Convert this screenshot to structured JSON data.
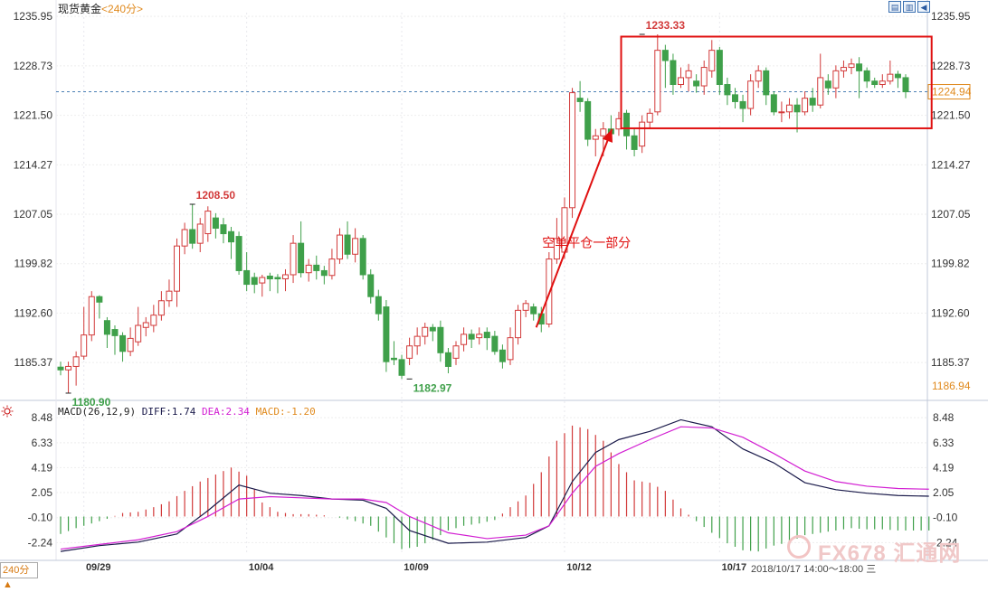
{
  "header": {
    "instrument": "现货黄金",
    "period": "<240分>"
  },
  "toolbar": {
    "btn1": "▤",
    "btn2": "▥",
    "btn3": "◀"
  },
  "macd_header": {
    "label": "MACD(26,12,9)",
    "diff": "DIFF:1.74",
    "dea": "DEA:2.34",
    "macd": "MACD:-1.20"
  },
  "bottom": {
    "period_button": "240分 ▲",
    "time_range": "2018/10/17 14:00～18:00 三"
  },
  "watermark": "FX678 汇通网",
  "colors": {
    "up": "#d23a3a",
    "down": "#3fa04a",
    "diff": "#1a1a4a",
    "dea": "#d21ed2",
    "macd_label": "#e08a1e",
    "box": "#e01010",
    "arrow": "#e01010"
  },
  "chart_data": [
    {
      "type": "candlestick",
      "price_axis_ticks": [
        1235.95,
        1228.73,
        1221.5,
        1214.27,
        1207.05,
        1199.82,
        1192.6,
        1185.37
      ],
      "ylim": [
        1180.5,
        1236.5
      ],
      "current_price": "1224.94",
      "last_low_label": "1186.94",
      "date_ticks": [
        {
          "i": 3,
          "label": "09/29"
        },
        {
          "i": 24,
          "label": "10/04"
        },
        {
          "i": 44,
          "label": "10/09"
        },
        {
          "i": 65,
          "label": "10/12"
        },
        {
          "i": 85,
          "label": "10/17"
        }
      ],
      "annotations": [
        {
          "i": 1,
          "value": 1180.9,
          "text": "1180.90",
          "pos": "below"
        },
        {
          "i": 17,
          "value": 1208.5,
          "text": "1208.50",
          "pos": "above"
        },
        {
          "i": 45,
          "value": 1182.97,
          "text": "1182.97",
          "pos": "below"
        },
        {
          "i": 75,
          "value": 1233.33,
          "text": "1233.33",
          "pos": "above"
        }
      ],
      "callout_text": "空单平仓一部分",
      "candles": [
        {
          "o": 1184.7,
          "c": 1184.3,
          "h": 1185.5,
          "l": 1183.5
        },
        {
          "o": 1184.3,
          "c": 1184.8,
          "h": 1185.5,
          "l": 1180.9
        },
        {
          "o": 1184.8,
          "c": 1186.2,
          "h": 1187.0,
          "l": 1182.0
        },
        {
          "o": 1186.3,
          "c": 1189.4,
          "h": 1193.5,
          "l": 1185.8
        },
        {
          "o": 1189.4,
          "c": 1195.0,
          "h": 1195.8,
          "l": 1188.5
        },
        {
          "o": 1195.0,
          "c": 1194.2,
          "h": 1195.2,
          "l": 1191.8
        },
        {
          "o": 1191.5,
          "c": 1189.5,
          "h": 1192.0,
          "l": 1187.5
        },
        {
          "o": 1190.2,
          "c": 1189.3,
          "h": 1190.8,
          "l": 1186.5
        },
        {
          "o": 1189.3,
          "c": 1187.0,
          "h": 1189.8,
          "l": 1185.5
        },
        {
          "o": 1187.0,
          "c": 1188.9,
          "h": 1190.5,
          "l": 1186.3
        },
        {
          "o": 1188.4,
          "c": 1190.8,
          "h": 1193.5,
          "l": 1187.8
        },
        {
          "o": 1190.5,
          "c": 1191.2,
          "h": 1192.0,
          "l": 1189.2
        },
        {
          "o": 1190.8,
          "c": 1192.3,
          "h": 1193.8,
          "l": 1189.8
        },
        {
          "o": 1192.3,
          "c": 1194.4,
          "h": 1195.8,
          "l": 1191.5
        },
        {
          "o": 1194.4,
          "c": 1195.8,
          "h": 1197.5,
          "l": 1193.5
        },
        {
          "o": 1195.8,
          "c": 1202.4,
          "h": 1203.5,
          "l": 1193.5
        },
        {
          "o": 1202.4,
          "c": 1204.8,
          "h": 1205.8,
          "l": 1201.2
        },
        {
          "o": 1204.8,
          "c": 1202.8,
          "h": 1208.5,
          "l": 1202.0
        },
        {
          "o": 1202.8,
          "c": 1205.6,
          "h": 1206.5,
          "l": 1201.5
        },
        {
          "o": 1204.2,
          "c": 1207.5,
          "h": 1208.2,
          "l": 1203.0
        },
        {
          "o": 1206.5,
          "c": 1205.0,
          "h": 1207.2,
          "l": 1203.5
        },
        {
          "o": 1205.5,
          "c": 1204.2,
          "h": 1206.5,
          "l": 1202.8
        },
        {
          "o": 1204.5,
          "c": 1203.0,
          "h": 1205.2,
          "l": 1200.5
        },
        {
          "o": 1203.8,
          "c": 1198.8,
          "h": 1204.5,
          "l": 1198.2
        },
        {
          "o": 1198.8,
          "c": 1196.8,
          "h": 1201.5,
          "l": 1195.8
        },
        {
          "o": 1197.8,
          "c": 1196.8,
          "h": 1198.5,
          "l": 1195.5
        },
        {
          "o": 1197.0,
          "c": 1197.8,
          "h": 1198.2,
          "l": 1195.0
        },
        {
          "o": 1198.0,
          "c": 1197.6,
          "h": 1198.5,
          "l": 1195.8
        },
        {
          "o": 1197.8,
          "c": 1197.6,
          "h": 1198.3,
          "l": 1195.5
        },
        {
          "o": 1197.6,
          "c": 1198.2,
          "h": 1199.0,
          "l": 1195.8
        },
        {
          "o": 1198.2,
          "c": 1202.8,
          "h": 1204.0,
          "l": 1197.0
        },
        {
          "o": 1202.8,
          "c": 1198.5,
          "h": 1206.0,
          "l": 1197.8
        },
        {
          "o": 1198.5,
          "c": 1199.6,
          "h": 1200.5,
          "l": 1197.2
        },
        {
          "o": 1199.6,
          "c": 1198.8,
          "h": 1201.0,
          "l": 1197.5
        },
        {
          "o": 1198.8,
          "c": 1198.1,
          "h": 1199.5,
          "l": 1196.8
        },
        {
          "o": 1198.1,
          "c": 1200.5,
          "h": 1202.0,
          "l": 1197.5
        },
        {
          "o": 1200.5,
          "c": 1204.0,
          "h": 1205.0,
          "l": 1199.8
        },
        {
          "o": 1204.0,
          "c": 1201.2,
          "h": 1206.0,
          "l": 1200.5
        },
        {
          "o": 1201.2,
          "c": 1203.5,
          "h": 1205.0,
          "l": 1200.0
        },
        {
          "o": 1203.5,
          "c": 1198.2,
          "h": 1204.0,
          "l": 1197.5
        },
        {
          "o": 1198.2,
          "c": 1195.0,
          "h": 1199.0,
          "l": 1194.0
        },
        {
          "o": 1195.0,
          "c": 1192.5,
          "h": 1196.0,
          "l": 1191.5
        },
        {
          "o": 1193.5,
          "c": 1185.5,
          "h": 1194.5,
          "l": 1184.0
        },
        {
          "o": 1186.0,
          "c": 1185.8,
          "h": 1188.5,
          "l": 1185.0
        },
        {
          "o": 1185.8,
          "c": 1183.5,
          "h": 1186.5,
          "l": 1182.97
        },
        {
          "o": 1186.0,
          "c": 1187.8,
          "h": 1189.0,
          "l": 1185.0
        },
        {
          "o": 1187.8,
          "c": 1189.2,
          "h": 1190.5,
          "l": 1186.5
        },
        {
          "o": 1189.2,
          "c": 1190.5,
          "h": 1191.2,
          "l": 1188.0
        },
        {
          "o": 1190.5,
          "c": 1190.0,
          "h": 1191.0,
          "l": 1188.5
        },
        {
          "o": 1190.5,
          "c": 1186.8,
          "h": 1191.5,
          "l": 1185.5
        },
        {
          "o": 1186.8,
          "c": 1184.8,
          "h": 1187.5,
          "l": 1183.8
        },
        {
          "o": 1186.0,
          "c": 1187.8,
          "h": 1188.5,
          "l": 1185.0
        },
        {
          "o": 1188.0,
          "c": 1189.5,
          "h": 1190.5,
          "l": 1187.0
        },
        {
          "o": 1189.5,
          "c": 1188.8,
          "h": 1190.2,
          "l": 1187.5
        },
        {
          "o": 1189.0,
          "c": 1189.5,
          "h": 1190.5,
          "l": 1188.0
        },
        {
          "o": 1189.8,
          "c": 1189.0,
          "h": 1190.5,
          "l": 1187.2
        },
        {
          "o": 1189.2,
          "c": 1187.0,
          "h": 1190.0,
          "l": 1186.5
        },
        {
          "o": 1187.2,
          "c": 1185.5,
          "h": 1188.0,
          "l": 1184.5
        },
        {
          "o": 1185.8,
          "c": 1189.0,
          "h": 1190.5,
          "l": 1185.0
        },
        {
          "o": 1189.0,
          "c": 1193.0,
          "h": 1193.8,
          "l": 1188.0
        },
        {
          "o": 1193.0,
          "c": 1194.0,
          "h": 1194.5,
          "l": 1192.0
        },
        {
          "o": 1193.5,
          "c": 1192.5,
          "h": 1194.0,
          "l": 1191.5
        },
        {
          "o": 1192.5,
          "c": 1191.0,
          "h": 1193.5,
          "l": 1189.8
        },
        {
          "o": 1191.0,
          "c": 1200.5,
          "h": 1201.5,
          "l": 1190.5
        },
        {
          "o": 1200.5,
          "c": 1203.5,
          "h": 1206.5,
          "l": 1199.8
        },
        {
          "o": 1201.5,
          "c": 1208.0,
          "h": 1209.5,
          "l": 1200.5
        },
        {
          "o": 1208.0,
          "c": 1224.8,
          "h": 1225.5,
          "l": 1206.5
        },
        {
          "o": 1224.0,
          "c": 1223.5,
          "h": 1226.5,
          "l": 1222.0
        },
        {
          "o": 1223.5,
          "c": 1218.0,
          "h": 1224.0,
          "l": 1217.0
        },
        {
          "o": 1218.0,
          "c": 1218.5,
          "h": 1219.5,
          "l": 1215.5
        },
        {
          "o": 1218.5,
          "c": 1219.5,
          "h": 1220.5,
          "l": 1215.5
        },
        {
          "o": 1219.5,
          "c": 1218.8,
          "h": 1221.5,
          "l": 1218.0
        },
        {
          "o": 1219.5,
          "c": 1221.0,
          "h": 1222.0,
          "l": 1218.5
        },
        {
          "o": 1221.8,
          "c": 1218.5,
          "h": 1222.3,
          "l": 1216.5
        },
        {
          "o": 1218.5,
          "c": 1216.5,
          "h": 1219.5,
          "l": 1215.5
        },
        {
          "o": 1217.0,
          "c": 1220.5,
          "h": 1221.5,
          "l": 1216.0
        },
        {
          "o": 1220.5,
          "c": 1221.8,
          "h": 1222.5,
          "l": 1219.5
        },
        {
          "o": 1222.0,
          "c": 1231.0,
          "h": 1233.33,
          "l": 1221.5
        },
        {
          "o": 1231.0,
          "c": 1229.5,
          "h": 1231.8,
          "l": 1225.5
        },
        {
          "o": 1229.5,
          "c": 1226.0,
          "h": 1230.5,
          "l": 1224.5
        },
        {
          "o": 1226.0,
          "c": 1227.0,
          "h": 1228.5,
          "l": 1225.5
        },
        {
          "o": 1227.0,
          "c": 1228.0,
          "h": 1229.0,
          "l": 1225.0
        },
        {
          "o": 1226.5,
          "c": 1225.8,
          "h": 1227.5,
          "l": 1224.8
        },
        {
          "o": 1225.8,
          "c": 1228.5,
          "h": 1229.5,
          "l": 1224.5
        },
        {
          "o": 1228.0,
          "c": 1231.0,
          "h": 1232.5,
          "l": 1227.0
        },
        {
          "o": 1231.0,
          "c": 1226.0,
          "h": 1231.5,
          "l": 1224.5
        },
        {
          "o": 1226.0,
          "c": 1224.5,
          "h": 1227.0,
          "l": 1223.0
        },
        {
          "o": 1224.5,
          "c": 1223.5,
          "h": 1225.5,
          "l": 1222.5
        },
        {
          "o": 1223.5,
          "c": 1222.5,
          "h": 1224.5,
          "l": 1220.5
        },
        {
          "o": 1222.5,
          "c": 1226.5,
          "h": 1227.5,
          "l": 1221.5
        },
        {
          "o": 1226.5,
          "c": 1228.0,
          "h": 1228.8,
          "l": 1225.5
        },
        {
          "o": 1228.0,
          "c": 1224.5,
          "h": 1228.5,
          "l": 1223.0
        },
        {
          "o": 1224.5,
          "c": 1222.0,
          "h": 1225.0,
          "l": 1221.5
        },
        {
          "o": 1222.0,
          "c": 1222.0,
          "h": 1223.5,
          "l": 1220.5
        },
        {
          "o": 1222.0,
          "c": 1223.0,
          "h": 1224.0,
          "l": 1221.0
        },
        {
          "o": 1223.0,
          "c": 1222.0,
          "h": 1224.0,
          "l": 1219.0
        },
        {
          "o": 1222.0,
          "c": 1224.0,
          "h": 1225.0,
          "l": 1221.5
        },
        {
          "o": 1224.0,
          "c": 1223.0,
          "h": 1225.5,
          "l": 1222.0
        },
        {
          "o": 1223.0,
          "c": 1227.0,
          "h": 1230.5,
          "l": 1222.5
        },
        {
          "o": 1226.5,
          "c": 1225.5,
          "h": 1227.5,
          "l": 1224.5
        },
        {
          "o": 1225.5,
          "c": 1228.0,
          "h": 1228.8,
          "l": 1224.0
        },
        {
          "o": 1228.0,
          "c": 1228.5,
          "h": 1229.5,
          "l": 1227.0
        },
        {
          "o": 1228.5,
          "c": 1229.0,
          "h": 1229.8,
          "l": 1227.5
        },
        {
          "o": 1229.0,
          "c": 1228.0,
          "h": 1230.0,
          "l": 1224.0
        },
        {
          "o": 1228.0,
          "c": 1226.5,
          "h": 1228.5,
          "l": 1225.5
        },
        {
          "o": 1226.5,
          "c": 1226.0,
          "h": 1227.0,
          "l": 1225.5
        },
        {
          "o": 1226.0,
          "c": 1226.5,
          "h": 1227.5,
          "l": 1225.5
        },
        {
          "o": 1226.5,
          "c": 1227.5,
          "h": 1229.5,
          "l": 1226.0
        },
        {
          "o": 1227.5,
          "c": 1227.0,
          "h": 1228.0,
          "l": 1225.5
        },
        {
          "o": 1227.0,
          "c": 1224.94,
          "h": 1227.5,
          "l": 1224.0
        }
      ]
    },
    {
      "type": "line",
      "name": "MACD(26,12,9)",
      "ylim": [
        -3.3,
        8.8
      ],
      "axis_ticks": [
        8.48,
        6.33,
        4.19,
        2.05,
        -0.1,
        -2.24
      ],
      "series": [
        {
          "name": "DIFF",
          "x": [
            0,
            5,
            10,
            15,
            19,
            23,
            27,
            31,
            35,
            39,
            42,
            45,
            50,
            55,
            60,
            63,
            66,
            69,
            72,
            76,
            80,
            84,
            88,
            92,
            96,
            100,
            104,
            108,
            112
          ],
          "values": [
            -3.0,
            -2.5,
            -2.2,
            -1.5,
            0.5,
            2.7,
            2.0,
            1.8,
            1.5,
            1.4,
            0.7,
            -1.2,
            -2.3,
            -2.2,
            -1.8,
            -0.8,
            3.0,
            5.5,
            6.6,
            7.3,
            8.3,
            7.7,
            5.8,
            4.6,
            2.9,
            2.3,
            2.0,
            1.8,
            1.74
          ]
        },
        {
          "name": "DEA",
          "x": [
            0,
            5,
            10,
            15,
            19,
            23,
            27,
            31,
            35,
            39,
            42,
            45,
            50,
            55,
            60,
            63,
            66,
            69,
            72,
            76,
            80,
            84,
            88,
            92,
            96,
            100,
            104,
            108,
            112
          ],
          "values": [
            -2.8,
            -2.4,
            -2.0,
            -1.3,
            0.0,
            1.5,
            1.7,
            1.6,
            1.5,
            1.5,
            1.2,
            0.0,
            -1.4,
            -1.9,
            -1.6,
            -0.8,
            2.0,
            4.3,
            5.4,
            6.6,
            7.7,
            7.6,
            6.8,
            5.4,
            3.9,
            3.0,
            2.6,
            2.4,
            2.34
          ]
        },
        {
          "name": "MACD",
          "x": [
            0,
            2,
            4,
            6,
            8,
            10,
            12,
            14,
            16,
            18,
            20,
            22,
            24,
            26,
            28,
            30,
            32,
            34,
            36,
            38,
            40,
            42,
            44,
            46,
            48,
            50,
            52,
            54,
            56,
            58,
            60,
            62,
            64,
            66,
            68,
            70,
            72,
            74,
            76,
            78,
            80,
            82,
            84,
            86,
            88,
            90,
            92,
            94,
            96,
            98,
            100,
            102,
            104,
            106,
            108,
            110,
            112
          ],
          "values": [
            -1.5,
            -1.0,
            -0.6,
            -0.2,
            0.3,
            0.4,
            0.8,
            1.3,
            2.2,
            3.0,
            3.6,
            4.2,
            3.5,
            1.2,
            0.4,
            0.2,
            0.2,
            0.1,
            -0.1,
            -0.4,
            -0.8,
            -1.8,
            -2.8,
            -2.6,
            -2.0,
            -1.2,
            -0.8,
            -0.6,
            -0.3,
            0.8,
            1.8,
            3.8,
            6.5,
            7.8,
            7.5,
            6.5,
            4.5,
            3.1,
            2.9,
            2.2,
            0.7,
            -0.4,
            -1.4,
            -2.3,
            -2.9,
            -3.0,
            -2.5,
            -2.2,
            -1.6,
            -1.4,
            -1.2,
            -1.0,
            -1.1,
            -1.1,
            -1.2,
            -1.2,
            -1.2
          ]
        }
      ]
    }
  ]
}
